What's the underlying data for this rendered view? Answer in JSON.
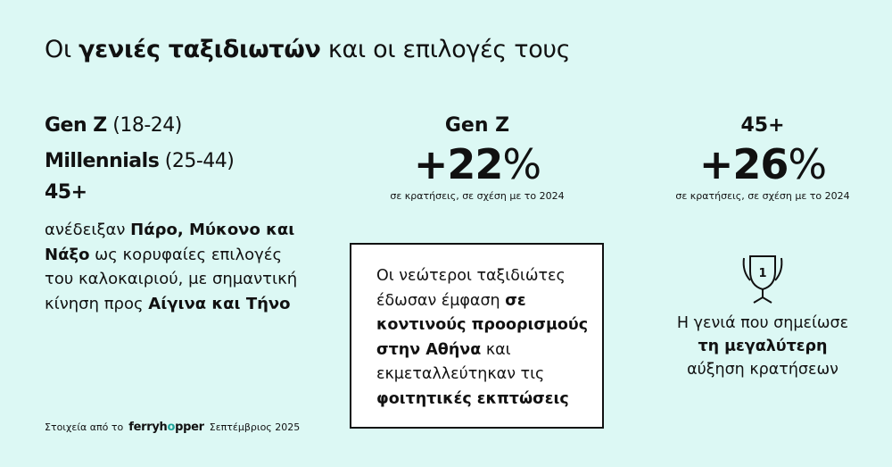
{
  "title": {
    "pre": "Οι ",
    "bold": "γενιές ταξιδιωτών",
    "post": " και οι επιλογές τους"
  },
  "left": {
    "generations": [
      {
        "name": "Gen Z",
        "range": " (18-24)"
      },
      {
        "name": "Millennials",
        "range": " (25-44)"
      },
      {
        "name": "45+",
        "range": ""
      }
    ],
    "paragraph": {
      "t1": "ανέδειξαν ",
      "b1": "Πάρο, Μύκονο και Νάξο",
      "t2": " ως κορυφαίες επιλογές του καλοκαιριού, με σημαντική κίνηση προς ",
      "b2": "Αίγινα και Τήνο"
    }
  },
  "stats": [
    {
      "label": "Gen Z",
      "sign_value": "+22",
      "unit": "%",
      "caption": "σε κρατήσεις, σε σχέση με το 2024"
    },
    {
      "label": "45+",
      "sign_value": "+26",
      "unit": "%",
      "caption": "σε κρατήσεις, σε σχέση με το 2024"
    }
  ],
  "box": {
    "t1": "Οι νεώτεροι ταξιδιώτες έδωσαν έμφαση ",
    "b1": "σε κοντινούς προορισμούς στην Αθήνα",
    "t2": " και εκμεταλλεύτηκαν τις ",
    "b2": "φοιτητικές εκπτώσεις"
  },
  "right": {
    "trophy_number": "1",
    "t1": "Η γενιά που σημείωσε ",
    "b1": "τη μεγαλύτερη",
    "t2": " αύξηση κρατήσεων"
  },
  "footer": {
    "pre": "Στοιχεία από το",
    "logo": "ferryhopper",
    "post": "Σεπτέμβριος 2025"
  },
  "colors": {
    "background": "#dcf8f4",
    "logo_accent": "#1fa49a"
  }
}
